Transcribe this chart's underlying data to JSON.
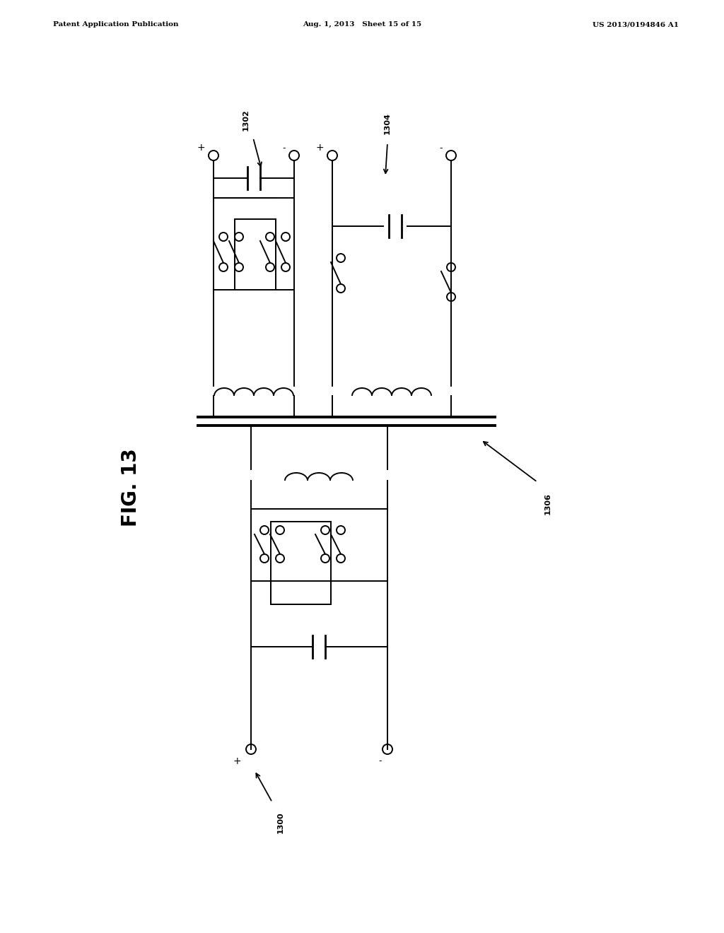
{
  "bg_color": "#ffffff",
  "header_left": "Patent Application Publication",
  "header_mid": "Aug. 1, 2013   Sheet 15 of 15",
  "header_right": "US 2013/0194846 A1",
  "fig_label": "FIG. 13",
  "lw_thin": 1.4,
  "lw_thick": 2.8,
  "circ_r": 0.006
}
